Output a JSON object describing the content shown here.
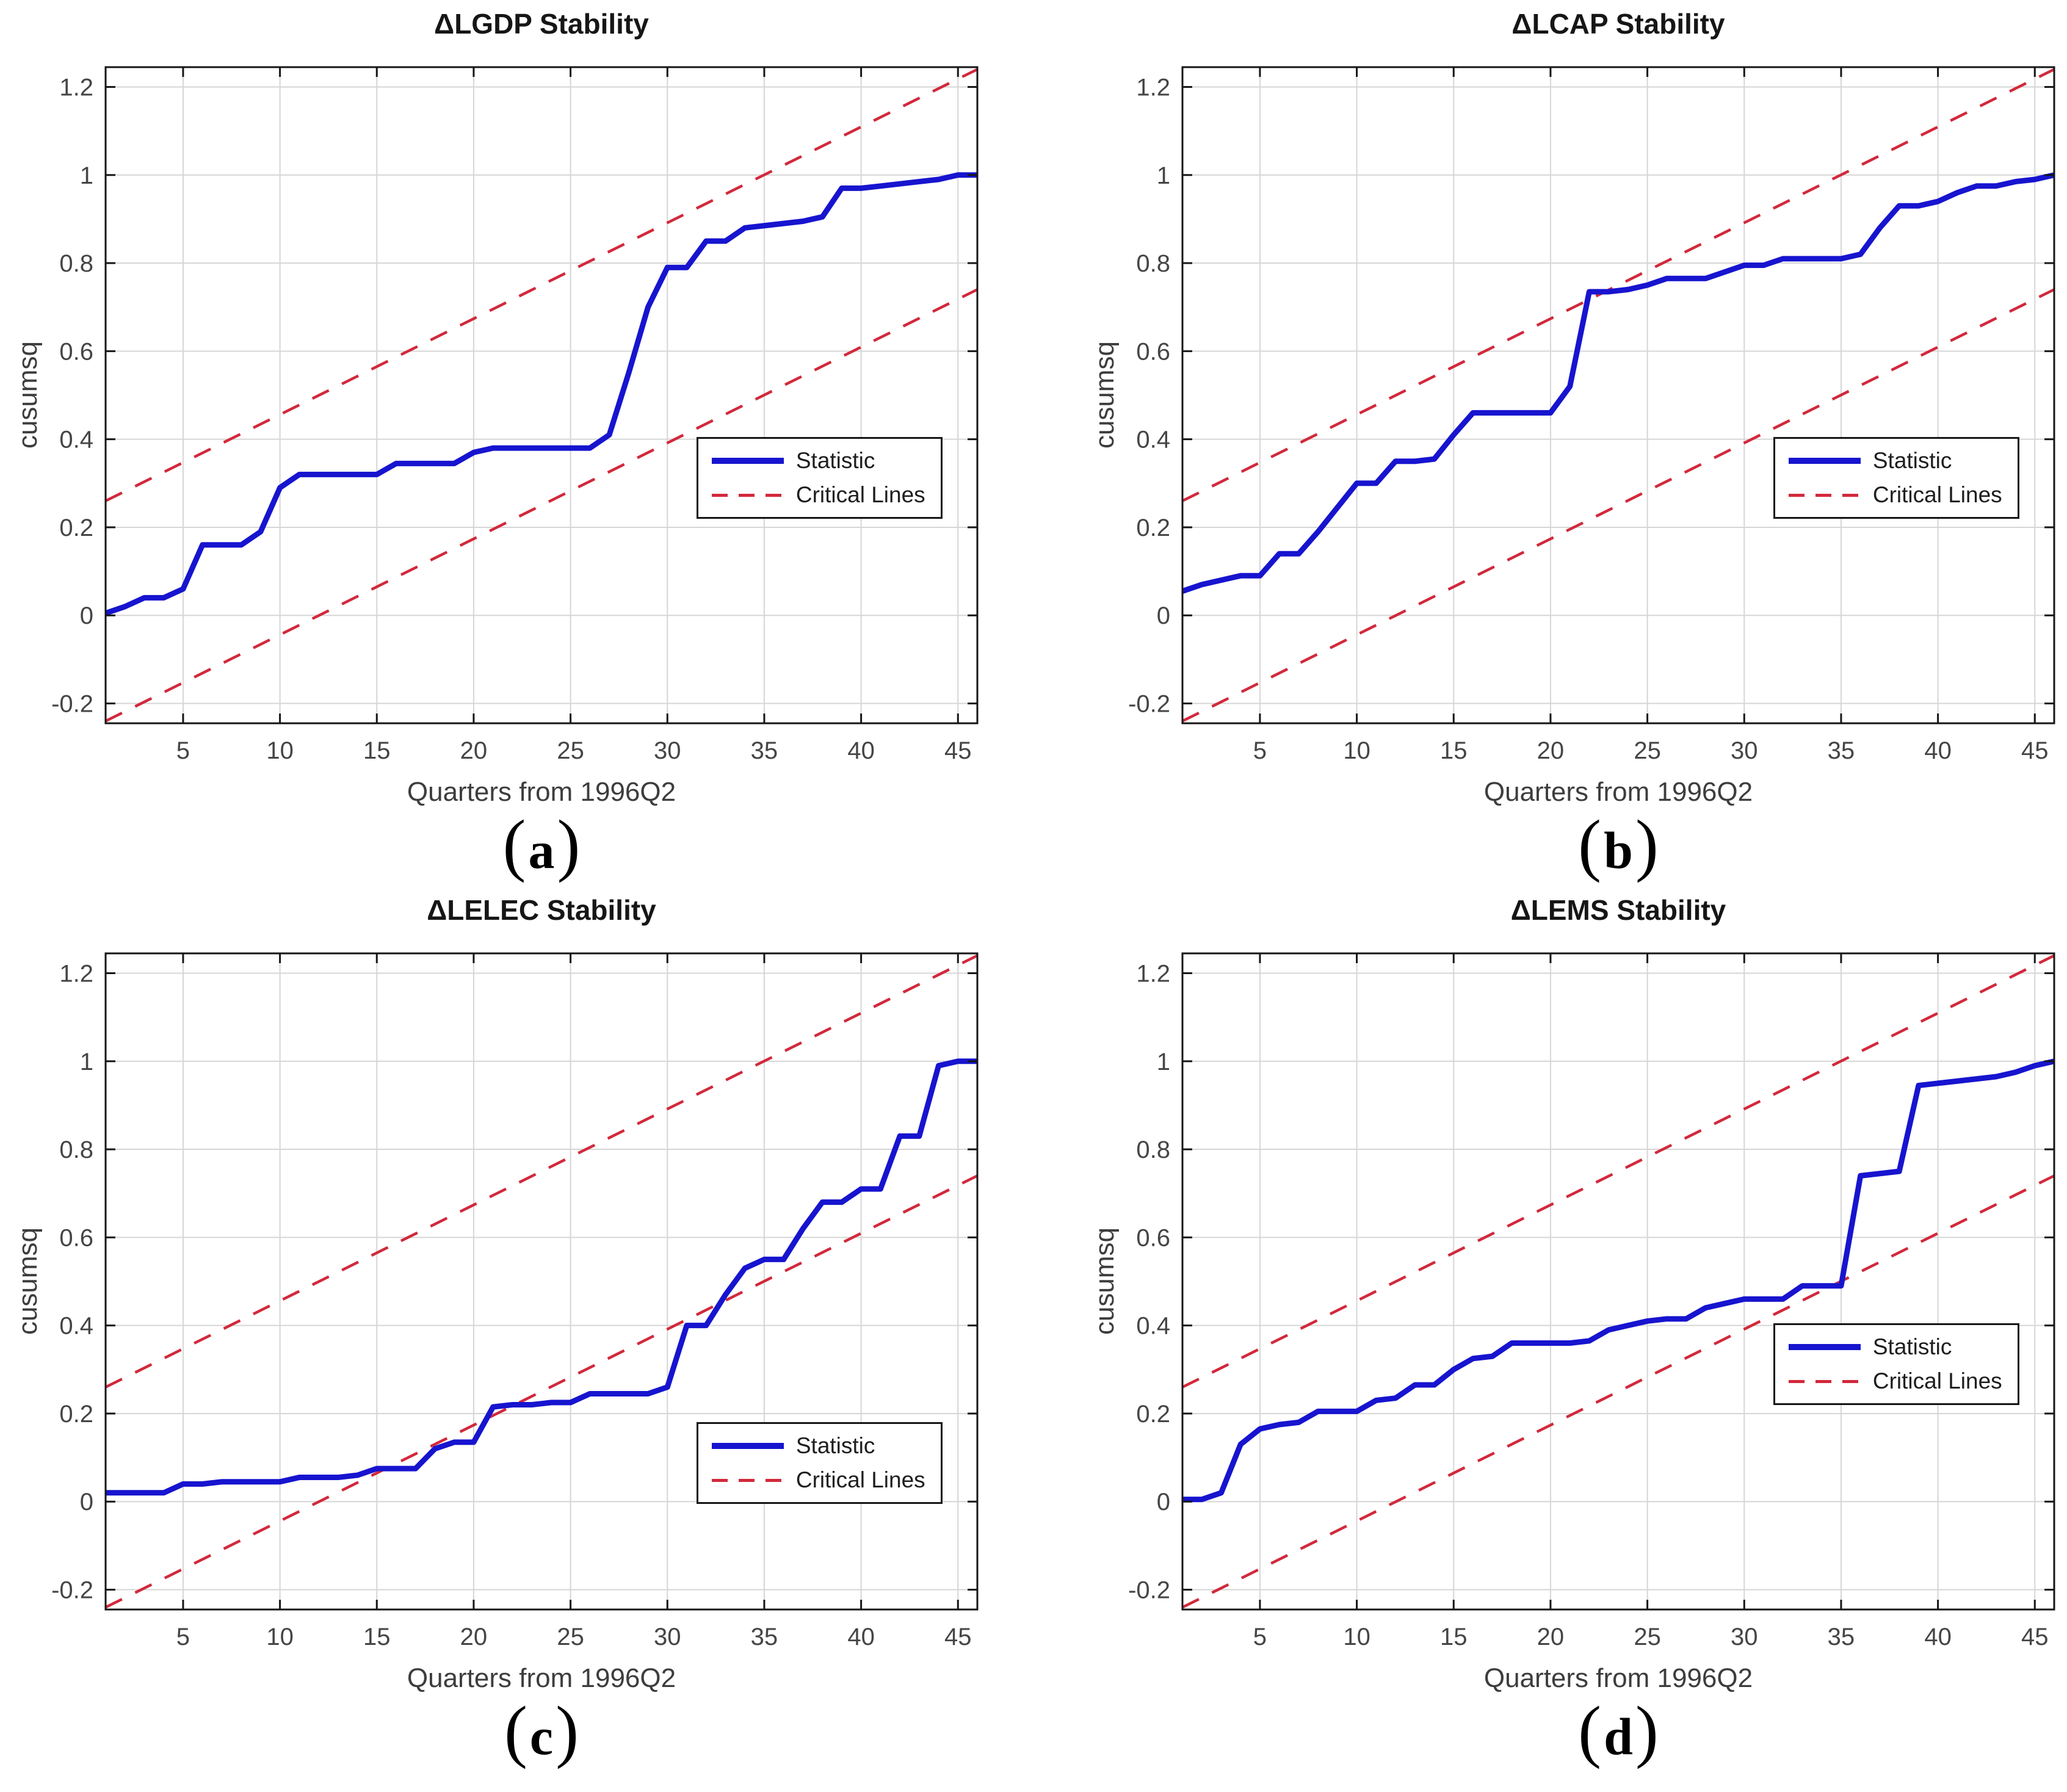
{
  "figure": {
    "caption_open": "(",
    "caption_close": ")",
    "legend": {
      "statistic_label": "Statistic",
      "critical_label": "Critical Lines"
    },
    "colors": {
      "statistic": "#1714cf",
      "critical": "#d2293b",
      "grid": "#d6d6d6",
      "axis": "#161616",
      "tick_label": "#454545",
      "label": "#3d3d3d",
      "background": "#ffffff"
    }
  },
  "chart_data": [
    {
      "type": "line",
      "title": "ΔLGDP Stability",
      "caption_letter": "a",
      "xlabel": "Quarters from 1996Q2",
      "ylabel": "cusumsq",
      "xlim": [
        1,
        46
      ],
      "ylim": [
        -0.245,
        1.245
      ],
      "grid": true,
      "x_ticks": [
        5,
        10,
        15,
        20,
        25,
        30,
        35,
        40,
        45
      ],
      "x_tick_labels": [
        "5",
        "10",
        "15",
        "20",
        "25",
        "30",
        "35",
        "40",
        "45"
      ],
      "y_ticks": {
        "values": [
          -0.2,
          0,
          0.2,
          0.4,
          0.6,
          0.8,
          1,
          1.2
        ],
        "labels": [
          "-0.2",
          "0",
          "0.2",
          "0.4",
          "0.6",
          "0.8",
          "1",
          "1.2"
        ]
      },
      "legend": {
        "x": [
          31.5,
          44.2
        ],
        "y": [
          0.22,
          0.405
        ]
      },
      "series": {
        "statistic": {
          "name": "Statistic",
          "x_start": 1,
          "x_step": 1,
          "values": [
            0.005,
            0.02,
            0.04,
            0.04,
            0.06,
            0.16,
            0.16,
            0.16,
            0.19,
            0.29,
            0.32,
            0.32,
            0.32,
            0.32,
            0.32,
            0.345,
            0.345,
            0.345,
            0.345,
            0.37,
            0.38,
            0.38,
            0.38,
            0.38,
            0.38,
            0.38,
            0.41,
            0.55,
            0.7,
            0.79,
            0.79,
            0.85,
            0.85,
            0.88,
            0.885,
            0.89,
            0.895,
            0.905,
            0.97,
            0.97,
            0.975,
            0.98,
            0.985,
            0.99,
            1.0,
            1.0
          ]
        },
        "critical": {
          "name": "Critical Lines",
          "lines": [
            {
              "x": [
                1,
                46
              ],
              "y": [
                -0.24,
                0.74
              ]
            },
            {
              "x": [
                1,
                46
              ],
              "y": [
                0.26,
                1.24
              ]
            }
          ]
        }
      }
    },
    {
      "type": "line",
      "title": "ΔLCAP Stability",
      "caption_letter": "b",
      "xlabel": "Quarters from 1996Q2",
      "ylabel": "cusumsq",
      "xlim": [
        1,
        46
      ],
      "ylim": [
        -0.245,
        1.245
      ],
      "grid": true,
      "x_ticks": [
        5,
        10,
        15,
        20,
        25,
        30,
        35,
        40,
        45
      ],
      "x_tick_labels": [
        "5",
        "10",
        "15",
        "20",
        "25",
        "30",
        "35",
        "40",
        "45"
      ],
      "y_ticks": {
        "values": [
          -0.2,
          0,
          0.2,
          0.4,
          0.6,
          0.8,
          1,
          1.2
        ],
        "labels": [
          "-0.2",
          "0",
          "0.2",
          "0.4",
          "0.6",
          "0.8",
          "1",
          "1.2"
        ]
      },
      "legend": {
        "x": [
          31.5,
          44.2
        ],
        "y": [
          0.22,
          0.405
        ]
      },
      "series": {
        "statistic": {
          "name": "Statistic",
          "x_start": 1,
          "x_step": 1,
          "values": [
            0.055,
            0.07,
            0.08,
            0.09,
            0.09,
            0.14,
            0.14,
            0.19,
            0.245,
            0.3,
            0.3,
            0.35,
            0.35,
            0.355,
            0.41,
            0.46,
            0.46,
            0.46,
            0.46,
            0.46,
            0.52,
            0.735,
            0.735,
            0.74,
            0.75,
            0.765,
            0.765,
            0.765,
            0.78,
            0.795,
            0.795,
            0.81,
            0.81,
            0.81,
            0.81,
            0.82,
            0.88,
            0.93,
            0.93,
            0.94,
            0.96,
            0.975,
            0.975,
            0.985,
            0.99,
            1.0
          ]
        },
        "critical": {
          "name": "Critical Lines",
          "lines": [
            {
              "x": [
                1,
                46
              ],
              "y": [
                -0.24,
                0.74
              ]
            },
            {
              "x": [
                1,
                46
              ],
              "y": [
                0.26,
                1.24
              ]
            }
          ]
        }
      }
    },
    {
      "type": "line",
      "title": "ΔLELEC Stability",
      "caption_letter": "c",
      "xlabel": "Quarters from 1996Q2",
      "ylabel": "cusumsq",
      "xlim": [
        1,
        46
      ],
      "ylim": [
        -0.245,
        1.245
      ],
      "grid": true,
      "x_ticks": [
        5,
        10,
        15,
        20,
        25,
        30,
        35,
        40,
        45
      ],
      "x_tick_labels": [
        "5",
        "10",
        "15",
        "20",
        "25",
        "30",
        "35",
        "40",
        "45"
      ],
      "y_ticks": {
        "values": [
          -0.2,
          0,
          0.2,
          0.4,
          0.6,
          0.8,
          1,
          1.2
        ],
        "labels": [
          "-0.2",
          "0",
          "0.2",
          "0.4",
          "0.6",
          "0.8",
          "1",
          "1.2"
        ]
      },
      "legend": {
        "x": [
          31.5,
          44.2
        ],
        "y": [
          -0.005,
          0.18
        ]
      },
      "series": {
        "statistic": {
          "name": "Statistic",
          "x_start": 1,
          "x_step": 1,
          "values": [
            0.02,
            0.02,
            0.02,
            0.02,
            0.04,
            0.04,
            0.045,
            0.045,
            0.045,
            0.045,
            0.055,
            0.055,
            0.055,
            0.06,
            0.075,
            0.075,
            0.075,
            0.12,
            0.135,
            0.135,
            0.215,
            0.22,
            0.22,
            0.225,
            0.225,
            0.245,
            0.245,
            0.245,
            0.245,
            0.26,
            0.4,
            0.4,
            0.47,
            0.53,
            0.55,
            0.55,
            0.62,
            0.68,
            0.68,
            0.71,
            0.71,
            0.83,
            0.83,
            0.99,
            1.0,
            1.0
          ]
        },
        "critical": {
          "name": "Critical Lines",
          "lines": [
            {
              "x": [
                1,
                46
              ],
              "y": [
                -0.24,
                0.74
              ]
            },
            {
              "x": [
                1,
                46
              ],
              "y": [
                0.26,
                1.24
              ]
            }
          ]
        }
      }
    },
    {
      "type": "line",
      "title": "ΔLEMS Stability",
      "caption_letter": "d",
      "xlabel": "Quarters from 1996Q2",
      "ylabel": "cusumsq",
      "xlim": [
        1,
        46
      ],
      "ylim": [
        -0.245,
        1.245
      ],
      "grid": true,
      "x_ticks": [
        5,
        10,
        15,
        20,
        25,
        30,
        35,
        40,
        45
      ],
      "x_tick_labels": [
        "5",
        "10",
        "15",
        "20",
        "25",
        "30",
        "35",
        "40",
        "45"
      ],
      "y_ticks": {
        "values": [
          -0.2,
          0,
          0.2,
          0.4,
          0.6,
          0.8,
          1,
          1.2
        ],
        "labels": [
          "-0.2",
          "0",
          "0.2",
          "0.4",
          "0.6",
          "0.8",
          "1",
          "1.2"
        ]
      },
      "legend": {
        "x": [
          31.5,
          44.2
        ],
        "y": [
          0.22,
          0.405
        ]
      },
      "series": {
        "statistic": {
          "name": "Statistic",
          "x_start": 1,
          "x_step": 1,
          "values": [
            0.005,
            0.005,
            0.02,
            0.13,
            0.165,
            0.175,
            0.18,
            0.205,
            0.205,
            0.205,
            0.23,
            0.235,
            0.265,
            0.265,
            0.3,
            0.325,
            0.33,
            0.36,
            0.36,
            0.36,
            0.36,
            0.365,
            0.39,
            0.4,
            0.41,
            0.415,
            0.415,
            0.44,
            0.45,
            0.46,
            0.46,
            0.46,
            0.49,
            0.49,
            0.49,
            0.74,
            0.745,
            0.75,
            0.945,
            0.95,
            0.955,
            0.96,
            0.965,
            0.975,
            0.99,
            1.0
          ]
        },
        "critical": {
          "name": "Critical Lines",
          "lines": [
            {
              "x": [
                1,
                46
              ],
              "y": [
                -0.24,
                0.74
              ]
            },
            {
              "x": [
                1,
                46
              ],
              "y": [
                0.26,
                1.24
              ]
            }
          ]
        }
      }
    }
  ]
}
